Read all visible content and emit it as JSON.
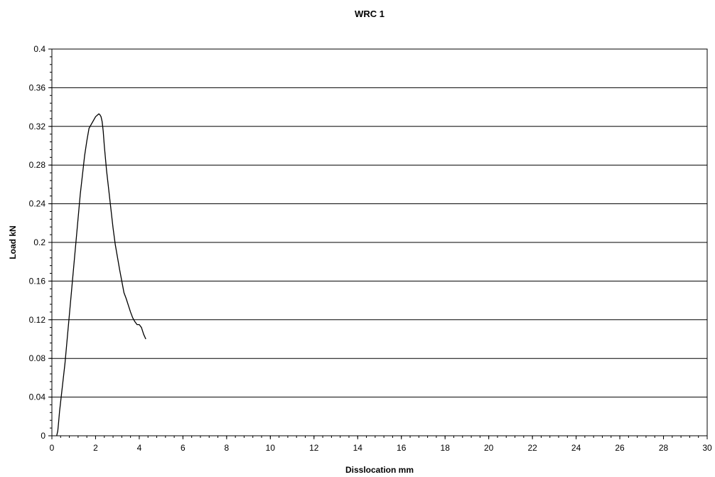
{
  "chart_data": {
    "type": "line",
    "title": "WRC 1",
    "xlabel": "Disslocation mm",
    "ylabel": "Load kN",
    "xlim": [
      0,
      30
    ],
    "ylim": [
      0,
      0.4
    ],
    "x_ticks": [
      0,
      2,
      4,
      6,
      8,
      10,
      12,
      14,
      16,
      18,
      20,
      22,
      24,
      26,
      28,
      30
    ],
    "y_ticks": [
      0,
      0.04,
      0.08,
      0.12,
      0.16,
      0.2,
      0.24,
      0.28,
      0.32,
      0.36,
      0.4
    ],
    "x_tick_labels": [
      "0",
      "2",
      "4",
      "6",
      "8",
      "10",
      "12",
      "14",
      "16",
      "18",
      "20",
      "22",
      "24",
      "26",
      "28",
      "30"
    ],
    "y_tick_labels": [
      "0",
      "0.04",
      "0.08",
      "0.12",
      "0.16",
      "0.2",
      "0.24",
      "0.28",
      "0.32",
      "0.36",
      "0.4"
    ],
    "grid": "horizontal",
    "legend": "none",
    "line_color": "#000000",
    "series": [
      {
        "x": [
          0.22,
          0.27,
          0.3,
          0.35,
          0.4,
          0.5,
          0.6,
          0.7,
          0.8,
          0.9,
          1.0,
          1.1,
          1.2,
          1.3,
          1.4,
          1.5,
          1.6,
          1.7,
          1.8,
          1.9,
          2.0,
          2.1,
          2.15,
          2.2,
          2.25,
          2.3,
          2.35,
          2.4,
          2.5,
          2.6,
          2.7,
          2.8,
          2.9,
          3.0,
          3.1,
          3.2,
          3.3,
          3.4,
          3.5,
          3.6,
          3.7,
          3.8,
          3.9,
          4.0,
          4.1,
          4.2,
          4.3
        ],
        "y": [
          0.0,
          0.005,
          0.012,
          0.025,
          0.035,
          0.055,
          0.075,
          0.1,
          0.125,
          0.15,
          0.175,
          0.2,
          0.225,
          0.25,
          0.27,
          0.29,
          0.305,
          0.318,
          0.322,
          0.326,
          0.33,
          0.332,
          0.333,
          0.332,
          0.33,
          0.325,
          0.315,
          0.3,
          0.275,
          0.255,
          0.235,
          0.215,
          0.198,
          0.185,
          0.172,
          0.16,
          0.148,
          0.142,
          0.135,
          0.128,
          0.122,
          0.118,
          0.115,
          0.115,
          0.112,
          0.105,
          0.1
        ]
      }
    ]
  }
}
